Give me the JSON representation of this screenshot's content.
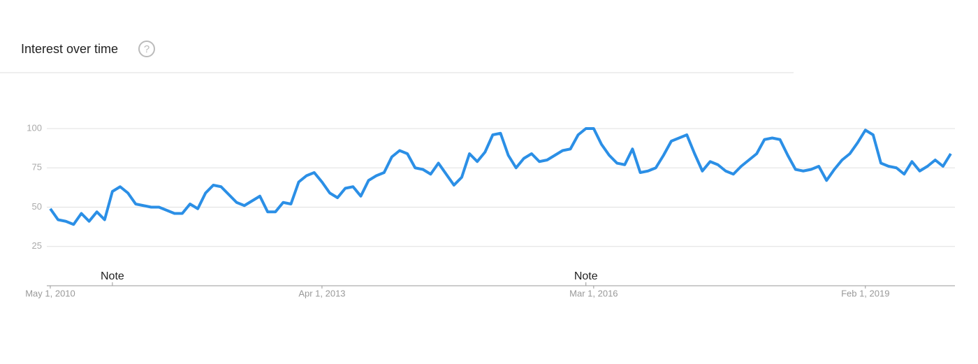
{
  "chart_data": {
    "type": "line",
    "title": "Interest over time",
    "help_icon": "?",
    "categories": [
      "May 1, 2010",
      null,
      null,
      null,
      null,
      null,
      null,
      null,
      null,
      null,
      null,
      null,
      null,
      null,
      null,
      null,
      null,
      null,
      null,
      null,
      null,
      null,
      null,
      null,
      null,
      null,
      null,
      null,
      null,
      null,
      null,
      null,
      null,
      null,
      null,
      "Apr 1, 2013",
      null,
      null,
      null,
      null,
      null,
      null,
      null,
      null,
      null,
      null,
      null,
      null,
      null,
      null,
      null,
      null,
      null,
      null,
      null,
      null,
      null,
      null,
      null,
      null,
      null,
      null,
      null,
      null,
      null,
      null,
      null,
      null,
      null,
      null,
      "Mar 1, 2016",
      null,
      null,
      null,
      null,
      null,
      null,
      null,
      null,
      null,
      null,
      null,
      null,
      null,
      null,
      null,
      null,
      null,
      null,
      null,
      null,
      null,
      null,
      null,
      null,
      null,
      null,
      null,
      null,
      null,
      null,
      null,
      null,
      null,
      null,
      "Feb 1, 2019",
      null,
      null,
      null,
      null,
      null,
      null,
      null,
      null,
      null,
      null,
      null
    ],
    "values": [
      49,
      42,
      41,
      39,
      46,
      41,
      47,
      42,
      60,
      63,
      59,
      52,
      51,
      50,
      50,
      48,
      46,
      46,
      52,
      49,
      59,
      64,
      63,
      58,
      53,
      51,
      54,
      57,
      47,
      47,
      53,
      52,
      66,
      70,
      72,
      66,
      59,
      56,
      62,
      63,
      57,
      67,
      70,
      72,
      82,
      86,
      84,
      75,
      74,
      71,
      78,
      71,
      64,
      69,
      84,
      79,
      85,
      96,
      97,
      83,
      75,
      81,
      84,
      79,
      80,
      83,
      86,
      87,
      96,
      100,
      100,
      90,
      83,
      78,
      77,
      87,
      72,
      73,
      75,
      83,
      92,
      94,
      96,
      84,
      73,
      79,
      77,
      73,
      71,
      76,
      80,
      84,
      93,
      94,
      93,
      83,
      74,
      73,
      74,
      76,
      67,
      74,
      80,
      84,
      91,
      99,
      96,
      78,
      76,
      75,
      71,
      79,
      73,
      76,
      80,
      76,
      84
    ],
    "color": "#2b8fe6",
    "ylim": [
      0,
      100
    ],
    "yticks": [
      25,
      50,
      75,
      100
    ],
    "grid": true,
    "annotations": [
      {
        "text": "Note",
        "at": 8
      },
      {
        "text": "Note",
        "at": 69
      }
    ]
  }
}
